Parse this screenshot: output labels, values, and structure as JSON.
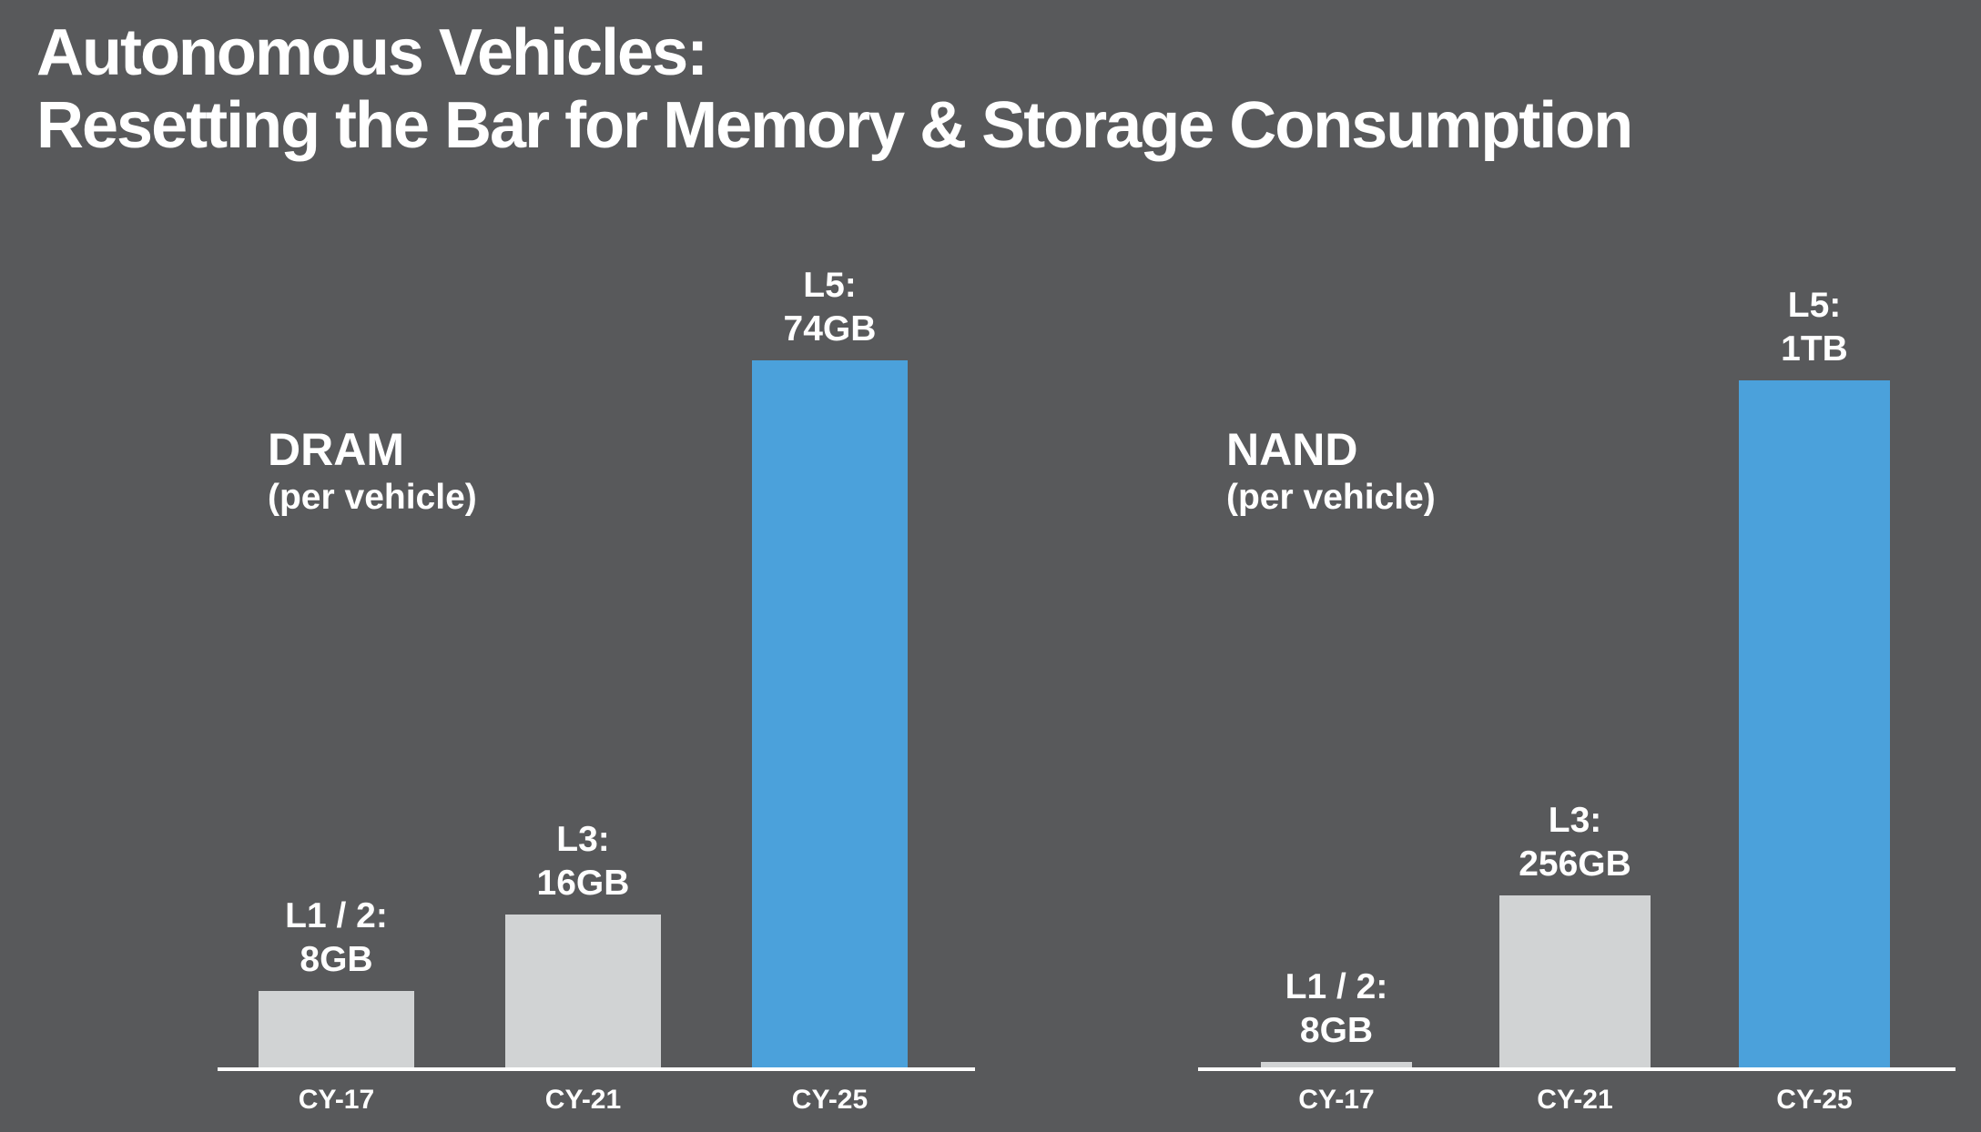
{
  "title": {
    "line1": "Autonomous Vehicles:",
    "line2": "Resetting the Bar for Memory & Storage Consumption"
  },
  "chart_data": [
    {
      "type": "bar",
      "title": "DRAM",
      "subtitle": "(per vehicle)",
      "unit": "GB",
      "categories": [
        "CY-17",
        "CY-21",
        "CY-25"
      ],
      "values": [
        8,
        16,
        74
      ],
      "labels": [
        [
          "L1 / 2:",
          "8GB"
        ],
        [
          "L3:",
          "16GB"
        ],
        [
          "L5:",
          "74GB"
        ]
      ],
      "colors": [
        "#d1d3d4",
        "#d1d3d4",
        "#4ba1db"
      ],
      "ylim": [
        0,
        74
      ]
    },
    {
      "type": "bar",
      "title": "NAND",
      "subtitle": "(per vehicle)",
      "unit": "GB",
      "categories": [
        "CY-17",
        "CY-21",
        "CY-25"
      ],
      "values": [
        8,
        256,
        1024
      ],
      "labels": [
        [
          "L1 / 2:",
          "8GB"
        ],
        [
          "L3:",
          "256GB"
        ],
        [
          "L5:",
          "1TB"
        ]
      ],
      "colors": [
        "#d1d3d4",
        "#d1d3d4",
        "#4ba1db"
      ],
      "ylim": [
        0,
        1024
      ]
    }
  ]
}
